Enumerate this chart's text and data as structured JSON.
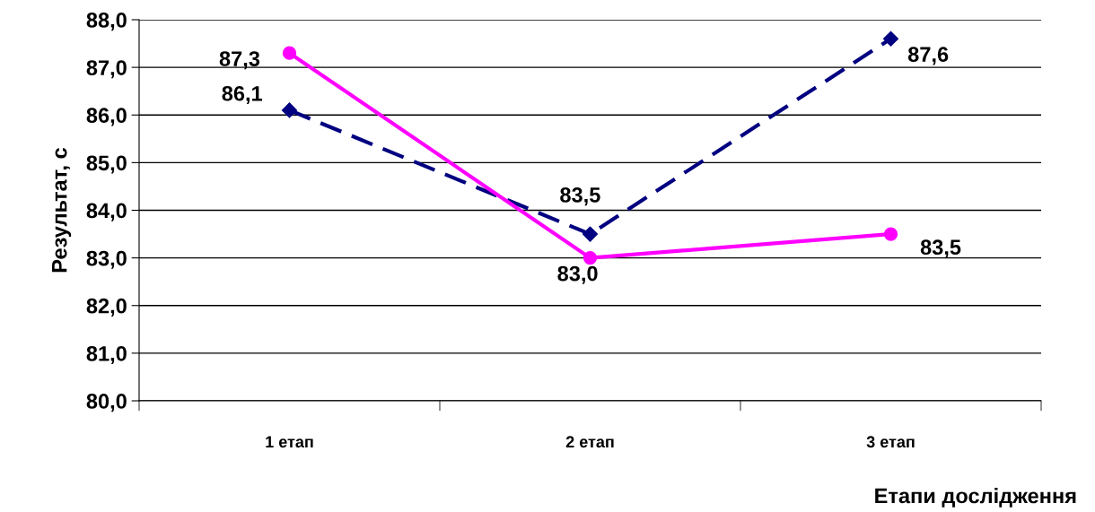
{
  "chart_data": {
    "type": "line",
    "xlabel": "Етапи дослідження",
    "ylabel": "Результат, с",
    "categories": [
      "1 етап",
      "2 етап",
      "3 етап"
    ],
    "series": [
      {
        "color": "#000080",
        "values": [
          86.1,
          83.5,
          87.6
        ],
        "marker": "diamond",
        "line_style": "dashed",
        "value_labels": [
          "86,1",
          "83,5",
          "87,6"
        ]
      },
      {
        "color": "#ff00ff",
        "values": [
          87.3,
          83.0,
          83.5
        ],
        "marker": "circle",
        "line_style": "solid",
        "value_labels": [
          "87,3",
          "83,0",
          "83,5"
        ]
      }
    ],
    "ylim": [
      80,
      88
    ],
    "yticks": [
      {
        "value": 80,
        "label": "80,0"
      },
      {
        "value": 81,
        "label": "81,0"
      },
      {
        "value": 82,
        "label": "82,0"
      },
      {
        "value": 83,
        "label": "83,0"
      },
      {
        "value": 84,
        "label": "84,0"
      },
      {
        "value": 85,
        "label": "85,0"
      },
      {
        "value": 86,
        "label": "86,0"
      },
      {
        "value": 87,
        "label": "87,0"
      },
      {
        "value": 88,
        "label": "88,0"
      }
    ],
    "grid": "y",
    "legend": false
  }
}
